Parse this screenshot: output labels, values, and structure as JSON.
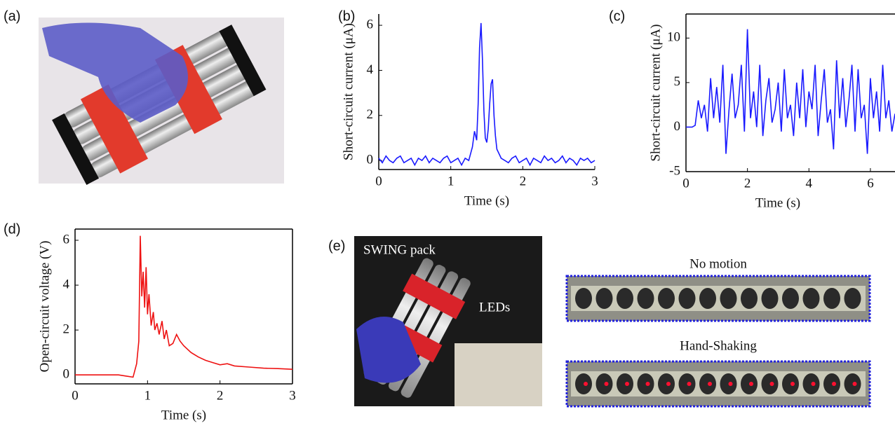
{
  "panel_labels": [
    "(a)",
    "(b)",
    "(c)",
    "(d)",
    "(e)"
  ],
  "panel_e": {
    "photo_labels": [
      "SWING pack",
      "LEDs"
    ],
    "strip_captions": [
      "No motion",
      "Hand-Shaking"
    ]
  },
  "chart_data": [
    {
      "type": "line",
      "x_label": "Time (s)",
      "y_label": "Short-circuit current (μA)",
      "color": "#1a1aff",
      "xlim": [
        0,
        3
      ],
      "ylim": [
        -0.4,
        6.5
      ],
      "xticks": [
        0,
        1,
        2,
        3
      ],
      "yticks": [
        0,
        2,
        4,
        6
      ],
      "x": [
        0,
        0.05,
        0.1,
        0.15,
        0.2,
        0.25,
        0.3,
        0.35,
        0.4,
        0.45,
        0.5,
        0.55,
        0.6,
        0.65,
        0.7,
        0.75,
        0.8,
        0.85,
        0.9,
        0.95,
        1.0,
        1.05,
        1.1,
        1.15,
        1.2,
        1.25,
        1.3,
        1.33,
        1.36,
        1.38,
        1.4,
        1.42,
        1.44,
        1.46,
        1.48,
        1.5,
        1.52,
        1.54,
        1.56,
        1.58,
        1.6,
        1.62,
        1.64,
        1.67,
        1.7,
        1.75,
        1.8,
        1.85,
        1.9,
        1.95,
        2.0,
        2.05,
        2.1,
        2.15,
        2.2,
        2.25,
        2.3,
        2.35,
        2.4,
        2.45,
        2.5,
        2.55,
        2.6,
        2.65,
        2.7,
        2.75,
        2.8,
        2.85,
        2.9,
        2.95,
        3.0
      ],
      "values": [
        0.1,
        -0.1,
        0.2,
        0,
        -0.1,
        0.1,
        0.2,
        -0.1,
        0,
        0.1,
        -0.2,
        0.1,
        0,
        0.2,
        -0.1,
        0.1,
        0,
        -0.1,
        0.1,
        0.2,
        -0.1,
        0,
        0.1,
        -0.2,
        0.1,
        0,
        0.6,
        1.3,
        0.9,
        2.5,
        5.0,
        6.1,
        4.5,
        2.2,
        1.0,
        0.8,
        1.4,
        2.5,
        3.4,
        3.6,
        2.0,
        1.1,
        0.5,
        0.3,
        0.1,
        0,
        -0.1,
        0.1,
        0.2,
        -0.1,
        0,
        0.1,
        -0.2,
        0.1,
        0,
        -0.1,
        0.2,
        0,
        0.1,
        -0.1,
        0,
        0.2,
        -0.1,
        0.1,
        0,
        -0.2,
        0.1,
        0,
        0.1,
        -0.1,
        0
      ]
    },
    {
      "type": "line",
      "x_label": "Time (s)",
      "y_label": "Short-circuit current (μA)",
      "color": "#1a1aff",
      "xlim": [
        0,
        6.8
      ],
      "ylim": [
        -5,
        12.7
      ],
      "xticks": [
        0,
        2,
        4,
        6
      ],
      "yticks": [
        -5,
        0,
        5,
        10
      ],
      "x": [
        0,
        0.1,
        0.2,
        0.3,
        0.4,
        0.5,
        0.6,
        0.7,
        0.8,
        0.9,
        1.0,
        1.1,
        1.2,
        1.3,
        1.4,
        1.5,
        1.6,
        1.7,
        1.8,
        1.9,
        2.0,
        2.1,
        2.2,
        2.3,
        2.4,
        2.5,
        2.6,
        2.7,
        2.8,
        2.9,
        3.0,
        3.1,
        3.2,
        3.3,
        3.4,
        3.5,
        3.6,
        3.7,
        3.8,
        3.9,
        4.0,
        4.1,
        4.2,
        4.3,
        4.4,
        4.5,
        4.6,
        4.7,
        4.8,
        4.9,
        5.0,
        5.1,
        5.2,
        5.3,
        5.4,
        5.5,
        5.6,
        5.7,
        5.8,
        5.9,
        6.0,
        6.1,
        6.2,
        6.3,
        6.4,
        6.5,
        6.6,
        6.7,
        6.8
      ],
      "values": [
        0,
        0,
        0,
        0.2,
        3,
        1,
        2.5,
        -0.5,
        5.5,
        1,
        4.5,
        0.5,
        7,
        -3,
        2,
        6,
        1,
        2.5,
        7,
        -0.5,
        11,
        1,
        4,
        0,
        7,
        -1,
        3,
        5.5,
        0.5,
        2,
        5,
        -0.5,
        6.5,
        1,
        2.5,
        -1,
        5,
        1,
        6.5,
        0,
        4,
        2,
        7,
        -1,
        3,
        6.5,
        0.5,
        2,
        -2.5,
        7.5,
        1,
        5.5,
        0,
        3,
        7,
        -0.5,
        6.5,
        1,
        2.5,
        -3,
        5.5,
        1,
        4,
        -0.5,
        7,
        1,
        3,
        -0.5,
        1.5
      ]
    },
    {
      "type": "line",
      "x_label": "Time (s)",
      "y_label": "Open-circuit voltage (V)",
      "color": "#ee1111",
      "xlim": [
        0,
        3
      ],
      "ylim": [
        -0.4,
        6.5
      ],
      "xticks": [
        0,
        1,
        2,
        3
      ],
      "yticks": [
        0,
        2,
        4,
        6
      ],
      "x": [
        0,
        0.1,
        0.2,
        0.3,
        0.4,
        0.5,
        0.6,
        0.7,
        0.8,
        0.85,
        0.88,
        0.9,
        0.92,
        0.94,
        0.96,
        0.98,
        1.0,
        1.02,
        1.05,
        1.08,
        1.1,
        1.13,
        1.16,
        1.2,
        1.23,
        1.26,
        1.3,
        1.35,
        1.4,
        1.45,
        1.5,
        1.6,
        1.7,
        1.8,
        1.9,
        2.0,
        2.1,
        2.2,
        2.4,
        2.6,
        2.8,
        3.0
      ],
      "values": [
        0,
        0,
        0,
        0,
        0,
        0,
        0,
        -0.05,
        -0.1,
        0.5,
        1.5,
        6.2,
        3.5,
        4.6,
        3.0,
        4.8,
        2.7,
        3.6,
        2.2,
        2.8,
        2.0,
        2.3,
        1.8,
        2.4,
        1.6,
        2.0,
        1.3,
        1.4,
        1.8,
        1.5,
        1.3,
        1.0,
        0.8,
        0.65,
        0.55,
        0.45,
        0.5,
        0.4,
        0.35,
        0.3,
        0.28,
        0.25
      ]
    }
  ]
}
